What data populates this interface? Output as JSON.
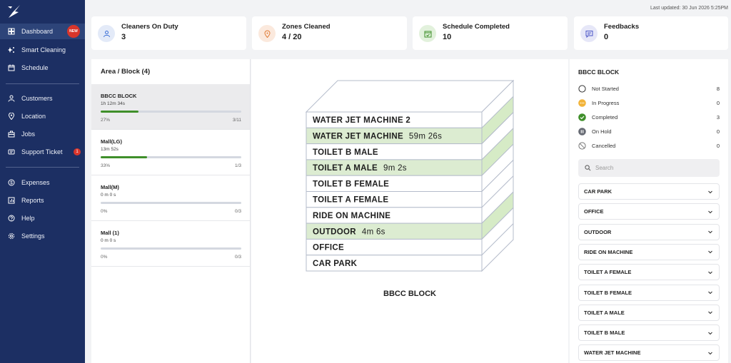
{
  "sidebar": {
    "items": [
      {
        "label": "Dashboard",
        "icon": "grid-icon",
        "active": true,
        "badge": "NEW"
      },
      {
        "label": "Smart Cleaning",
        "icon": "sparkle-icon"
      },
      {
        "label": "Schedule",
        "icon": "calendar-icon"
      },
      {
        "label": "Customers",
        "icon": "user-icon"
      },
      {
        "label": "Location",
        "icon": "pin-icon"
      },
      {
        "label": "Jobs",
        "icon": "briefcase-icon"
      },
      {
        "label": "Support Ticket",
        "icon": "ticket-icon",
        "count": "1"
      },
      {
        "label": "Expenses",
        "icon": "dollar-icon"
      },
      {
        "label": "Reports",
        "icon": "chart-icon"
      },
      {
        "label": "Help",
        "icon": "help-icon"
      },
      {
        "label": "Settings",
        "icon": "gear-icon"
      }
    ]
  },
  "header": {
    "last_updated": "Last updated: 30 Jun 2026 5:25PM"
  },
  "stats": [
    {
      "label": "Cleaners On Duty",
      "value": "3",
      "icon": "person-icon",
      "color": "#e3eaf8",
      "icon_color": "#3b6fd6"
    },
    {
      "label": "Zones Cleaned",
      "value": "4 / 20",
      "icon": "location-icon",
      "color": "#fbe9dd",
      "icon_color": "#e07a35"
    },
    {
      "label": "Schedule Completed",
      "value": "10",
      "icon": "calendar-check-icon",
      "color": "#e2f1dc",
      "icon_color": "#3f8f2a"
    },
    {
      "label": "Feedbacks",
      "value": "0",
      "icon": "message-icon",
      "color": "#e6e7f8",
      "icon_color": "#4b55c7"
    }
  ],
  "areas": {
    "title": "Area / Block (4)",
    "items": [
      {
        "name": "BBCC BLOCK",
        "duration": "1h 12m 34s",
        "percent": "27%",
        "progress": 0.27,
        "count": "3/11",
        "selected": true
      },
      {
        "name": "Mall(LG)",
        "duration": "13m 52s",
        "percent": "33%",
        "progress": 0.33,
        "count": "1/3"
      },
      {
        "name": "Mall(M)",
        "duration": "0 m 0 s",
        "percent": "0%",
        "progress": 0,
        "count": "0/3"
      },
      {
        "name": "Mall (1)",
        "duration": "0 m 0 s",
        "percent": "0%",
        "progress": 0,
        "count": "0/3"
      }
    ]
  },
  "building": {
    "label": "BBCC BLOCK",
    "floors": [
      {
        "name": "WATER JET MACHINE 2",
        "time": "",
        "done": false
      },
      {
        "name": "WATER JET MACHINE",
        "time": "59m 26s",
        "done": true
      },
      {
        "name": "TOILET B MALE",
        "time": "",
        "done": false
      },
      {
        "name": "TOILET A MALE",
        "time": "9m 2s",
        "done": true
      },
      {
        "name": "TOILET B FEMALE",
        "time": "",
        "done": false
      },
      {
        "name": "TOILET A FEMALE",
        "time": "",
        "done": false
      },
      {
        "name": "RIDE ON MACHINE",
        "time": "",
        "done": false
      },
      {
        "name": "OUTDOOR",
        "time": "4m 6s",
        "done": true
      },
      {
        "name": "OFFICE",
        "time": "",
        "done": false
      },
      {
        "name": "CAR PARK",
        "time": "",
        "done": false
      }
    ]
  },
  "status_panel": {
    "title": "BBCC BLOCK",
    "statuses": [
      {
        "label": "Not Started",
        "count": "8",
        "icon": "circle-outline-icon"
      },
      {
        "label": "In Progress",
        "count": "0",
        "icon": "dots-icon"
      },
      {
        "label": "Completed",
        "count": "3",
        "icon": "check-circle-icon"
      },
      {
        "label": "On Hold",
        "count": "0",
        "icon": "pause-icon"
      },
      {
        "label": "Cancelled",
        "count": "0",
        "icon": "cancel-icon"
      }
    ],
    "search_placeholder": "Search",
    "zones": [
      "CAR PARK",
      "OFFICE",
      "OUTDOOR",
      "RIDE ON MACHINE",
      "TOILET A FEMALE",
      "TOILET B FEMALE",
      "TOILET A MALE",
      "TOILET B MALE",
      "WATER JET MACHINE"
    ]
  }
}
